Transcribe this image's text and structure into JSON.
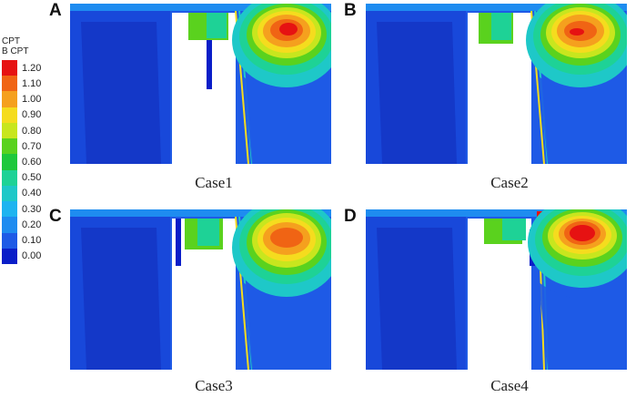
{
  "legend": {
    "title_line1": "CPT",
    "title_line2": "B CPT",
    "ticks": [
      "1.20",
      "1.10",
      "1.00",
      "0.90",
      "0.80",
      "0.70",
      "0.60",
      "0.50",
      "0.40",
      "0.30",
      "0.20",
      "0.10",
      "0.00"
    ],
    "colors": [
      "#e61212",
      "#f06414",
      "#f5a01e",
      "#f5dc1e",
      "#c8e61e",
      "#5ad21e",
      "#1ec83c",
      "#1ed296",
      "#1ec8c8",
      "#1eb4f0",
      "#1e8cf0",
      "#1e5ae6",
      "#0a1ec8"
    ]
  },
  "panels": [
    {
      "letter": "A",
      "label": "Case1"
    },
    {
      "letter": "B",
      "label": "Case2"
    },
    {
      "letter": "C",
      "label": "Case3"
    },
    {
      "letter": "D",
      "label": "Case4"
    }
  ]
}
